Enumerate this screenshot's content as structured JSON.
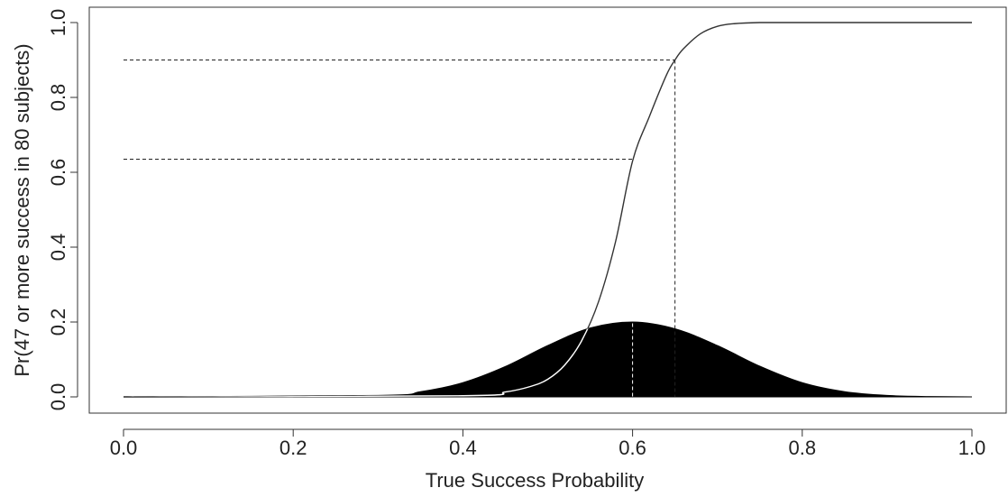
{
  "chart_data": {
    "type": "line",
    "title": "",
    "xlabel": "True Success Probability",
    "ylabel": "Pr(47 or more success in 80 subjects)",
    "xlim": [
      0,
      1
    ],
    "ylim": [
      0,
      1
    ],
    "grid": false,
    "x_ticks": [
      "0.0",
      "0.2",
      "0.4",
      "0.6",
      "0.8",
      "1.0"
    ],
    "y_ticks": [
      "0.0",
      "0.2",
      "0.4",
      "0.6",
      "0.8",
      "1.0"
    ],
    "series": [
      {
        "style": "solid-line",
        "x": [
          0.0,
          0.4,
          0.45,
          0.48,
          0.5,
          0.52,
          0.54,
          0.56,
          0.58,
          0.6,
          0.62,
          0.64,
          0.65,
          0.66,
          0.68,
          0.7,
          0.72,
          0.75,
          0.8,
          1.0
        ],
        "y": [
          0.0,
          0.003,
          0.013,
          0.028,
          0.047,
          0.085,
          0.15,
          0.255,
          0.415,
          0.63,
          0.75,
          0.86,
          0.9,
          0.93,
          0.97,
          0.99,
          0.997,
          1.0,
          1.0,
          1.0
        ]
      },
      {
        "style": "filled-area",
        "x": [
          0.0,
          0.3,
          0.35,
          0.4,
          0.45,
          0.5,
          0.55,
          0.6,
          0.65,
          0.7,
          0.75,
          0.8,
          0.85,
          0.9,
          0.95,
          1.0
        ],
        "y": [
          0.0,
          0.004,
          0.014,
          0.038,
          0.081,
          0.137,
          0.184,
          0.2,
          0.182,
          0.137,
          0.082,
          0.038,
          0.014,
          0.004,
          0.001,
          0.0
        ]
      }
    ],
    "reference_lines": [
      {
        "x": 0.6,
        "y": 0.635
      },
      {
        "x": 0.65,
        "y": 0.9
      }
    ]
  }
}
